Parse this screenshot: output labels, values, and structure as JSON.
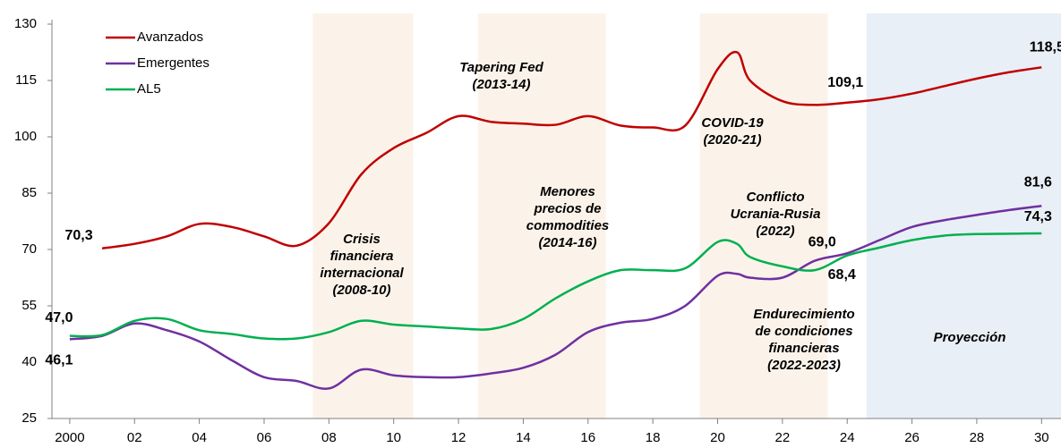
{
  "chart_data": {
    "type": "line",
    "x": [
      2000,
      2001,
      2002,
      2003,
      2004,
      2005,
      2006,
      2007,
      2008,
      2009,
      2010,
      2011,
      2012,
      2013,
      2014,
      2015,
      2016,
      2017,
      2018,
      2019,
      2020,
      2020.6,
      2021,
      2022,
      2023,
      2024,
      2025,
      2026,
      2027,
      2028,
      2029,
      2030
    ],
    "series": [
      {
        "name": "Avanzados",
        "color": "#c00000",
        "values": [
          null,
          70.3,
          71.5,
          73.5,
          76.8,
          76,
          73.5,
          71,
          77,
          90,
          97,
          101,
          105.5,
          104,
          103.5,
          103.2,
          105.5,
          103,
          102.5,
          103,
          118,
          122.5,
          115,
          109.5,
          108.5,
          109.1,
          110,
          111.5,
          113.5,
          115.5,
          117.2,
          118.5
        ],
        "value_labels": [
          null,
          "70,3",
          null,
          null,
          null,
          null,
          null,
          null,
          null,
          null,
          null,
          null,
          null,
          null,
          null,
          null,
          null,
          null,
          null,
          null,
          null,
          null,
          null,
          null,
          null,
          "109,1",
          null,
          null,
          null,
          null,
          null,
          "118,5"
        ]
      },
      {
        "name": "Emergentes",
        "color": "#7030a0",
        "values": [
          46.1,
          47,
          50.3,
          48.5,
          45.5,
          40.5,
          36,
          35,
          33,
          38,
          36.5,
          36,
          36,
          37,
          38.5,
          42,
          48,
          50.5,
          51.5,
          55,
          63,
          63.5,
          62.5,
          62.5,
          67,
          69,
          72.5,
          76,
          77.8,
          79.2,
          80.5,
          81.6
        ],
        "value_labels": [
          "46,1",
          null,
          null,
          null,
          null,
          null,
          null,
          null,
          null,
          null,
          null,
          null,
          null,
          null,
          null,
          null,
          null,
          null,
          null,
          null,
          null,
          null,
          null,
          null,
          null,
          "69,0",
          null,
          null,
          null,
          null,
          null,
          "81,6"
        ]
      },
      {
        "name": "AL5",
        "color": "#00b050",
        "values": [
          47,
          47.2,
          51,
          51.5,
          48.5,
          47.5,
          46.3,
          46.3,
          48,
          51,
          50,
          49.5,
          49,
          48.8,
          51.5,
          57,
          61.5,
          64.5,
          64.5,
          65,
          72,
          71.5,
          68,
          65.5,
          64.5,
          68.4,
          70.5,
          72.5,
          73.7,
          74.1,
          74.2,
          74.3
        ],
        "value_labels": [
          "47,0",
          null,
          null,
          null,
          null,
          null,
          null,
          null,
          null,
          null,
          null,
          null,
          null,
          null,
          null,
          null,
          null,
          null,
          null,
          null,
          null,
          null,
          null,
          null,
          null,
          "68,4",
          null,
          null,
          null,
          null,
          null,
          "74,3"
        ]
      }
    ],
    "xlim": [
      1999.45,
      2030.6
    ],
    "xticks": [
      2000,
      {
        "value": 2002,
        "label": "02"
      },
      {
        "value": 2004,
        "label": "04"
      },
      {
        "value": 2006,
        "label": "06"
      },
      {
        "value": 2008,
        "label": "08"
      },
      {
        "value": 2010,
        "label": "10"
      },
      {
        "value": 2012,
        "label": "12"
      },
      {
        "value": 2014,
        "label": "14"
      },
      {
        "value": 2016,
        "label": "16"
      },
      {
        "value": 2018,
        "label": "18"
      },
      {
        "value": 2020,
        "label": "20"
      },
      {
        "value": 2022,
        "label": "22"
      },
      {
        "value": 2024,
        "label": "24"
      },
      {
        "value": 2026,
        "label": "26"
      },
      {
        "value": 2028,
        "label": "28"
      },
      {
        "value": 2030,
        "label": "30"
      }
    ],
    "ylim": [
      25,
      130
    ],
    "yticks": [
      25,
      40,
      55,
      70,
      85,
      100,
      115,
      130
    ],
    "legend": "top-left",
    "shaded_periods": [
      {
        "xrange": [
          2007.5,
          2010.6
        ],
        "color": "#fbf3ea"
      },
      {
        "xrange": [
          2012.6,
          2016.55
        ],
        "color": "#fbf3ea"
      },
      {
        "xrange": [
          2019.45,
          2023.4
        ],
        "color": "#fbf3ea"
      },
      {
        "xrange": [
          2024.6,
          2030.6
        ],
        "color": "#e9eff6"
      }
    ],
    "annotations": [
      {
        "lines": [
          "Tapering Fed",
          "(2013-14)"
        ],
        "color": "#ed7d31"
      },
      {
        "lines": [
          "COVID-19",
          "(2020-21)"
        ],
        "color": "#ed7d31"
      },
      {
        "lines": [
          "Crisis",
          "financiera",
          "internacional",
          "(2008-10)"
        ],
        "color": "#ed7d31"
      },
      {
        "lines": [
          "Menores",
          "precios de",
          "commodities",
          "(2014-16)"
        ],
        "color": "#ed7d31"
      },
      {
        "lines": [
          "Conflicto",
          "Ucrania-Rusia",
          "(2022)"
        ],
        "color": "#ed7d31"
      },
      {
        "lines": [
          "Endurecimiento",
          "de condiciones",
          "financieras",
          "(2022-2023)"
        ],
        "color": "#ed7d31"
      },
      {
        "lines": [
          "Proyección"
        ],
        "color": "#2e75b6"
      }
    ]
  }
}
